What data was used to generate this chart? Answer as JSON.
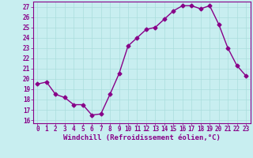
{
  "x": [
    0,
    1,
    2,
    3,
    4,
    5,
    6,
    7,
    8,
    9,
    10,
    11,
    12,
    13,
    14,
    15,
    16,
    17,
    18,
    19,
    20,
    21,
    22,
    23
  ],
  "y": [
    19.5,
    19.7,
    18.5,
    18.2,
    17.5,
    17.5,
    16.5,
    16.6,
    18.5,
    20.5,
    23.2,
    24.0,
    24.8,
    25.0,
    25.8,
    26.6,
    27.1,
    27.1,
    26.8,
    27.1,
    25.3,
    23.0,
    21.3,
    20.3
  ],
  "line_color": "#880088",
  "marker": "D",
  "marker_size": 2.5,
  "bg_color": "#c8eef0",
  "grid_color": "#aadddd",
  "xlabel": "Windchill (Refroidissement éolien,°C)",
  "ylim": [
    15.7,
    27.5
  ],
  "xlim": [
    -0.5,
    23.5
  ],
  "yticks": [
    16,
    17,
    18,
    19,
    20,
    21,
    22,
    23,
    24,
    25,
    26,
    27
  ],
  "xticks": [
    0,
    1,
    2,
    3,
    4,
    5,
    6,
    7,
    8,
    9,
    10,
    11,
    12,
    13,
    14,
    15,
    16,
    17,
    18,
    19,
    20,
    21,
    22,
    23
  ],
  "tick_label_color": "#880088",
  "tick_label_size": 5.5,
  "xlabel_size": 6.5,
  "xlabel_color": "#880088",
  "axis_color": "#880088",
  "spine_color": "#880088",
  "line_width": 1.0
}
